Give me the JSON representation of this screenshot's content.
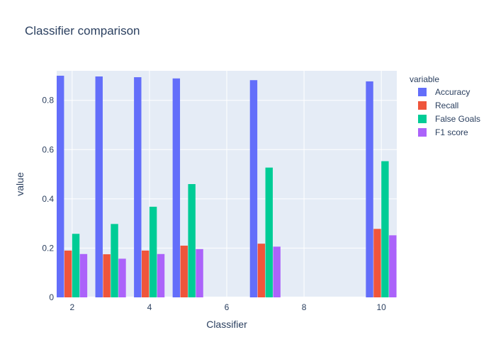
{
  "chart_data": {
    "type": "bar",
    "title": "Classifier comparison",
    "xlabel": "Classifier",
    "ylabel": "value",
    "x": [
      2,
      3,
      4,
      5,
      7,
      10
    ],
    "xlim": [
      1.6,
      10.4
    ],
    "ylim": [
      0,
      0.92
    ],
    "xticks": [
      2,
      4,
      6,
      8,
      10
    ],
    "yticks": [
      0,
      0.2,
      0.4,
      0.6,
      0.8
    ],
    "ytick_labels": [
      "0",
      "0.2",
      "0.4",
      "0.6",
      "0.8"
    ],
    "grid": true,
    "legend": {
      "title": "variable",
      "position": "right"
    },
    "series": [
      {
        "name": "Accuracy",
        "color": "#636efa",
        "values": [
          0.9,
          0.897,
          0.894,
          0.889,
          0.882,
          0.877
        ]
      },
      {
        "name": "Recall",
        "color": "#ef553b",
        "values": [
          0.19,
          0.175,
          0.19,
          0.21,
          0.218,
          0.278
        ]
      },
      {
        "name": "False Goals",
        "color": "#00cc96",
        "values": [
          0.258,
          0.298,
          0.368,
          0.46,
          0.527,
          0.553
        ]
      },
      {
        "name": "F1 score",
        "color": "#ab63fa",
        "values": [
          0.176,
          0.157,
          0.176,
          0.196,
          0.206,
          0.252
        ]
      }
    ]
  }
}
